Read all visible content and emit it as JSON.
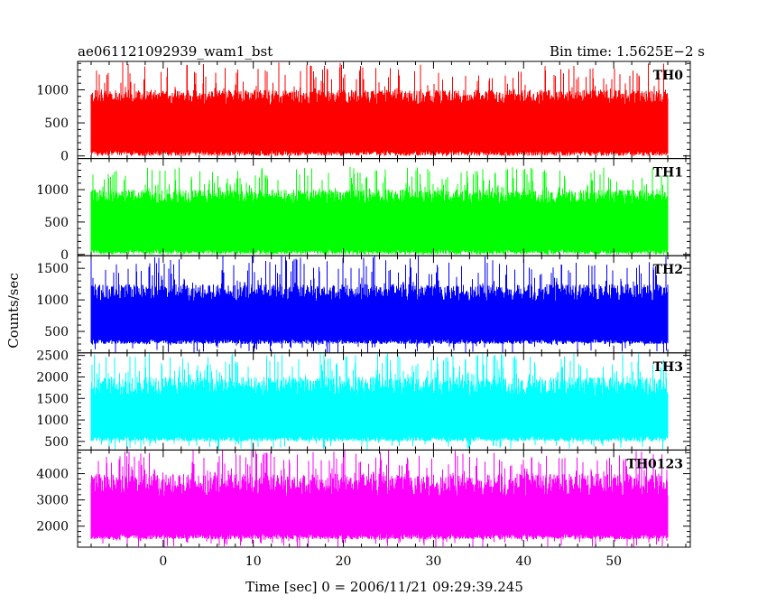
{
  "chart_data": {
    "type": "line",
    "title_left": "ae061121092939_wam1_bst",
    "title_right": "Bin time: 1.5625E−2 s",
    "xlabel": "Time [sec] 0 = 2006/11/21 09:29:39.245",
    "ylabel": "Counts/sec",
    "xlim": [
      -9.5,
      58.5
    ],
    "x_range": [
      -8.0,
      56.0
    ],
    "x_ticks": [
      0,
      10,
      20,
      30,
      40,
      50
    ],
    "x_tick_labels": [
      "0",
      "10",
      "20",
      "30",
      "40",
      "50"
    ],
    "grid": false,
    "panels": [
      {
        "name": "TH0",
        "color": "#ff0000",
        "ylim": [
          -40,
          1430
        ],
        "yticks": [
          0,
          500,
          1000
        ],
        "ytick_labels": [
          "0",
          "500",
          "1000"
        ],
        "base_low": 0,
        "base_high": 1000,
        "spike_max": 1420,
        "dip_min": 60
      },
      {
        "name": "TH1",
        "color": "#00ff00",
        "ylim": [
          -20,
          1480
        ],
        "yticks": [
          0,
          500,
          1000
        ],
        "ytick_labels": [
          "0",
          "500",
          "1000"
        ],
        "base_low": 0,
        "base_high": 1000,
        "spike_max": 1350,
        "dip_min": 20
      },
      {
        "name": "TH2",
        "color": "#0000ff",
        "ylim": [
          160,
          1700
        ],
        "yticks": [
          500,
          1000,
          1500
        ],
        "ytick_labels": [
          "500",
          "1000",
          "1500"
        ],
        "base_low": 300,
        "base_high": 1250,
        "spike_max": 1700,
        "dip_min": 160
      },
      {
        "name": "TH3",
        "color": "#00ffff",
        "ylim": [
          300,
          2560
        ],
        "yticks": [
          500,
          1000,
          1500,
          2000,
          2500
        ],
        "ytick_labels": [
          "500",
          "1000",
          "1500",
          "2000",
          "2500"
        ],
        "base_low": 500,
        "base_high": 2000,
        "spike_max": 2560,
        "dip_min": 300
      },
      {
        "name": "TH0123",
        "color": "#ff00ff",
        "ylim": [
          1200,
          4900
        ],
        "yticks": [
          2000,
          3000,
          4000
        ],
        "ytick_labels": [
          "2000",
          "3000",
          "4000"
        ],
        "base_low": 1500,
        "base_high": 4000,
        "spike_max": 4900,
        "dip_min": 1200
      }
    ]
  }
}
